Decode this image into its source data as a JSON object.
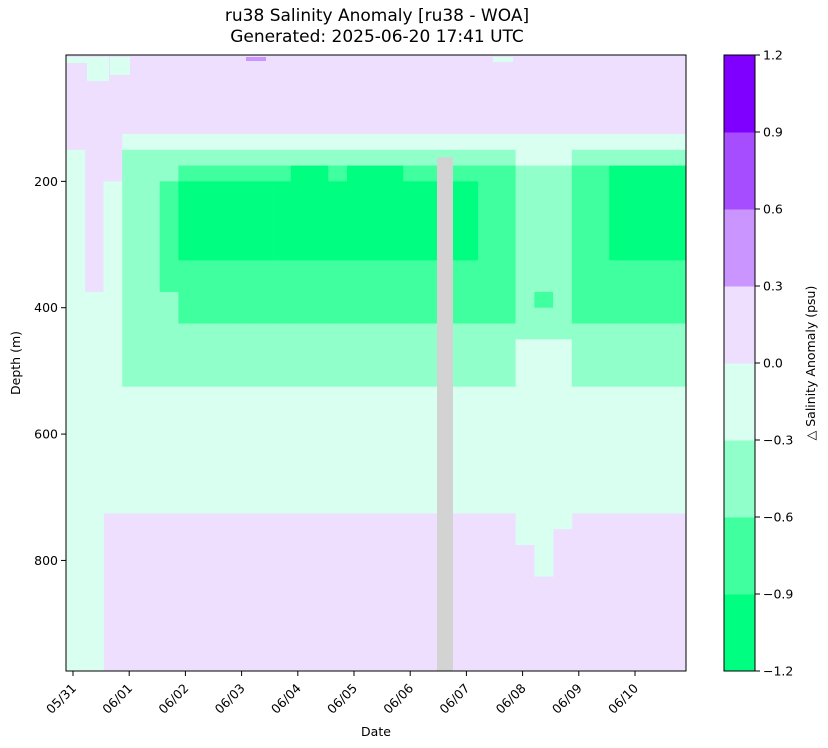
{
  "title_line1": "ru38 Salinity Anomaly [ru38 - WOA]",
  "title_line2": "Generated: 2025-06-20 17:41 UTC",
  "chart_data": {
    "type": "heatmap",
    "xlabel": "Date",
    "ylabel": "Depth (m)",
    "x_tick_labels": [
      "05/31",
      "06/01",
      "06/02",
      "06/03",
      "06/04",
      "06/05",
      "06/06",
      "06/07",
      "06/08",
      "06/09",
      "06/10"
    ],
    "y_tick_labels": [
      "200",
      "400",
      "600",
      "800"
    ],
    "y_ticks": [
      200,
      400,
      600,
      800
    ],
    "ylim": [
      975,
      0
    ],
    "y_inverted": true,
    "colorbar": {
      "label": "△ Salinity Anomaly (psu)",
      "tick_labels": [
        "−1.2",
        "−0.9",
        "−0.6",
        "−0.3",
        "0.0",
        "0.3",
        "0.6",
        "0.9",
        "1.2"
      ],
      "bounds": [
        -1.2,
        -0.9,
        -0.6,
        -0.3,
        0.0,
        0.3,
        0.6,
        0.9,
        1.2
      ],
      "colors": [
        "#00ff80",
        "#40ff9f",
        "#90ffca",
        "#d8fff0",
        "#eedfff",
        "#ca95ff",
        "#a64dff",
        "#8000ff"
      ]
    },
    "gap_color": "#d3d3d3",
    "gap_date": "06/06 (~12:00–18:00)",
    "depth_bins_m": "25 m bins, 0–975 m",
    "anomaly_bands": [
      {
        "depth_range_m": [
          0,
          125
        ],
        "anomaly_psu": "0.0 to 0.3 (slight positive)"
      },
      {
        "depth_range_m": [
          125,
          525
        ],
        "anomaly_psu": "−1.2 to −0.3 (negative core, strongest 175–325 m)"
      },
      {
        "depth_range_m": [
          525,
          725
        ],
        "anomaly_psu": "−0.3 to 0.0"
      },
      {
        "depth_range_m": [
          725,
          975
        ],
        "anomaly_psu": "0.0 to 0.3 (slight positive)"
      }
    ]
  }
}
